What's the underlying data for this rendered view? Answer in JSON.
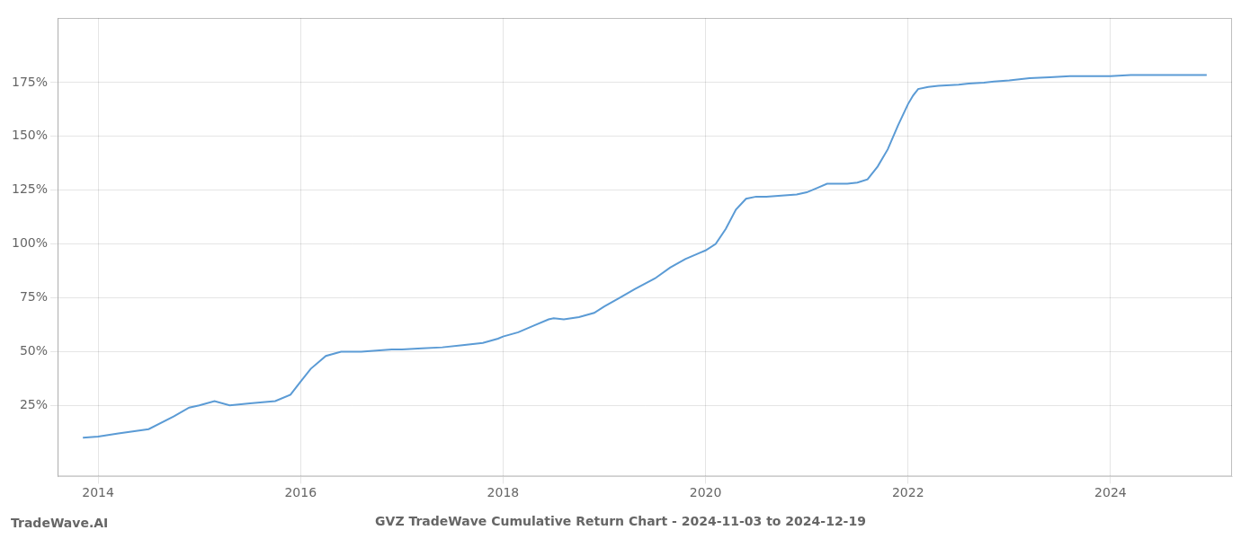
{
  "chart_data": {
    "type": "line",
    "title": "GVZ TradeWave Cumulative Return Chart - 2024-11-03 to 2024-12-19",
    "annotations": [
      "TradeWave.AI"
    ],
    "color": "#5b9bd5",
    "grid": true,
    "xlim": [
      2013.6,
      2025.2
    ],
    "xticks": [
      2014,
      2016,
      2018,
      2020,
      2022,
      2024
    ],
    "ylim": [
      -8,
      205
    ],
    "yticks": [
      {
        "value": 25,
        "label": "25%"
      },
      {
        "value": 50,
        "label": "50%"
      },
      {
        "value": 75,
        "label": "75%"
      },
      {
        "value": 100,
        "label": "100%"
      },
      {
        "value": 125,
        "label": "125%"
      },
      {
        "value": 150,
        "label": "150%"
      },
      {
        "value": 175,
        "label": "175%"
      }
    ],
    "x": [
      2013.85,
      2014.0,
      2014.2,
      2014.5,
      2014.75,
      2014.9,
      2015.0,
      2015.15,
      2015.3,
      2015.5,
      2015.75,
      2015.9,
      2016.0,
      2016.1,
      2016.25,
      2016.4,
      2016.6,
      2016.75,
      2016.9,
      2017.0,
      2017.2,
      2017.4,
      2017.6,
      2017.8,
      2017.95,
      2018.0,
      2018.15,
      2018.3,
      2018.45,
      2018.5,
      2018.6,
      2018.75,
      2018.9,
      2019.0,
      2019.15,
      2019.3,
      2019.5,
      2019.65,
      2019.8,
      2019.95,
      2020.0,
      2020.1,
      2020.2,
      2020.3,
      2020.4,
      2020.5,
      2020.6,
      2020.75,
      2020.9,
      2021.0,
      2021.1,
      2021.2,
      2021.3,
      2021.4,
      2021.5,
      2021.6,
      2021.7,
      2021.8,
      2021.9,
      2022.0,
      2022.05,
      2022.1,
      2022.2,
      2022.3,
      2022.5,
      2022.6,
      2022.75,
      2022.85,
      2023.0,
      2023.2,
      2023.4,
      2023.6,
      2023.8,
      2024.0,
      2024.2,
      2024.4,
      2024.6,
      2024.8,
      2024.95
    ],
    "values": [
      10,
      10.5,
      12,
      14,
      20,
      24,
      25,
      27,
      25,
      26,
      27,
      30,
      36,
      42,
      48,
      50,
      50,
      50.5,
      51,
      51,
      51.5,
      52,
      53,
      54,
      56,
      57,
      59,
      62,
      65,
      65.5,
      65,
      66,
      68,
      71,
      75,
      79,
      84,
      89,
      93,
      96,
      97,
      100,
      107,
      116,
      121,
      122,
      122,
      122.5,
      123,
      124,
      126,
      128,
      128,
      128,
      128.5,
      130,
      136,
      144,
      155,
      165,
      169,
      172,
      173,
      173.5,
      174,
      174.5,
      175,
      175.5,
      176,
      177,
      177.5,
      178,
      178,
      178,
      178.5,
      178.5,
      178.5,
      178.5,
      178.5
    ]
  }
}
